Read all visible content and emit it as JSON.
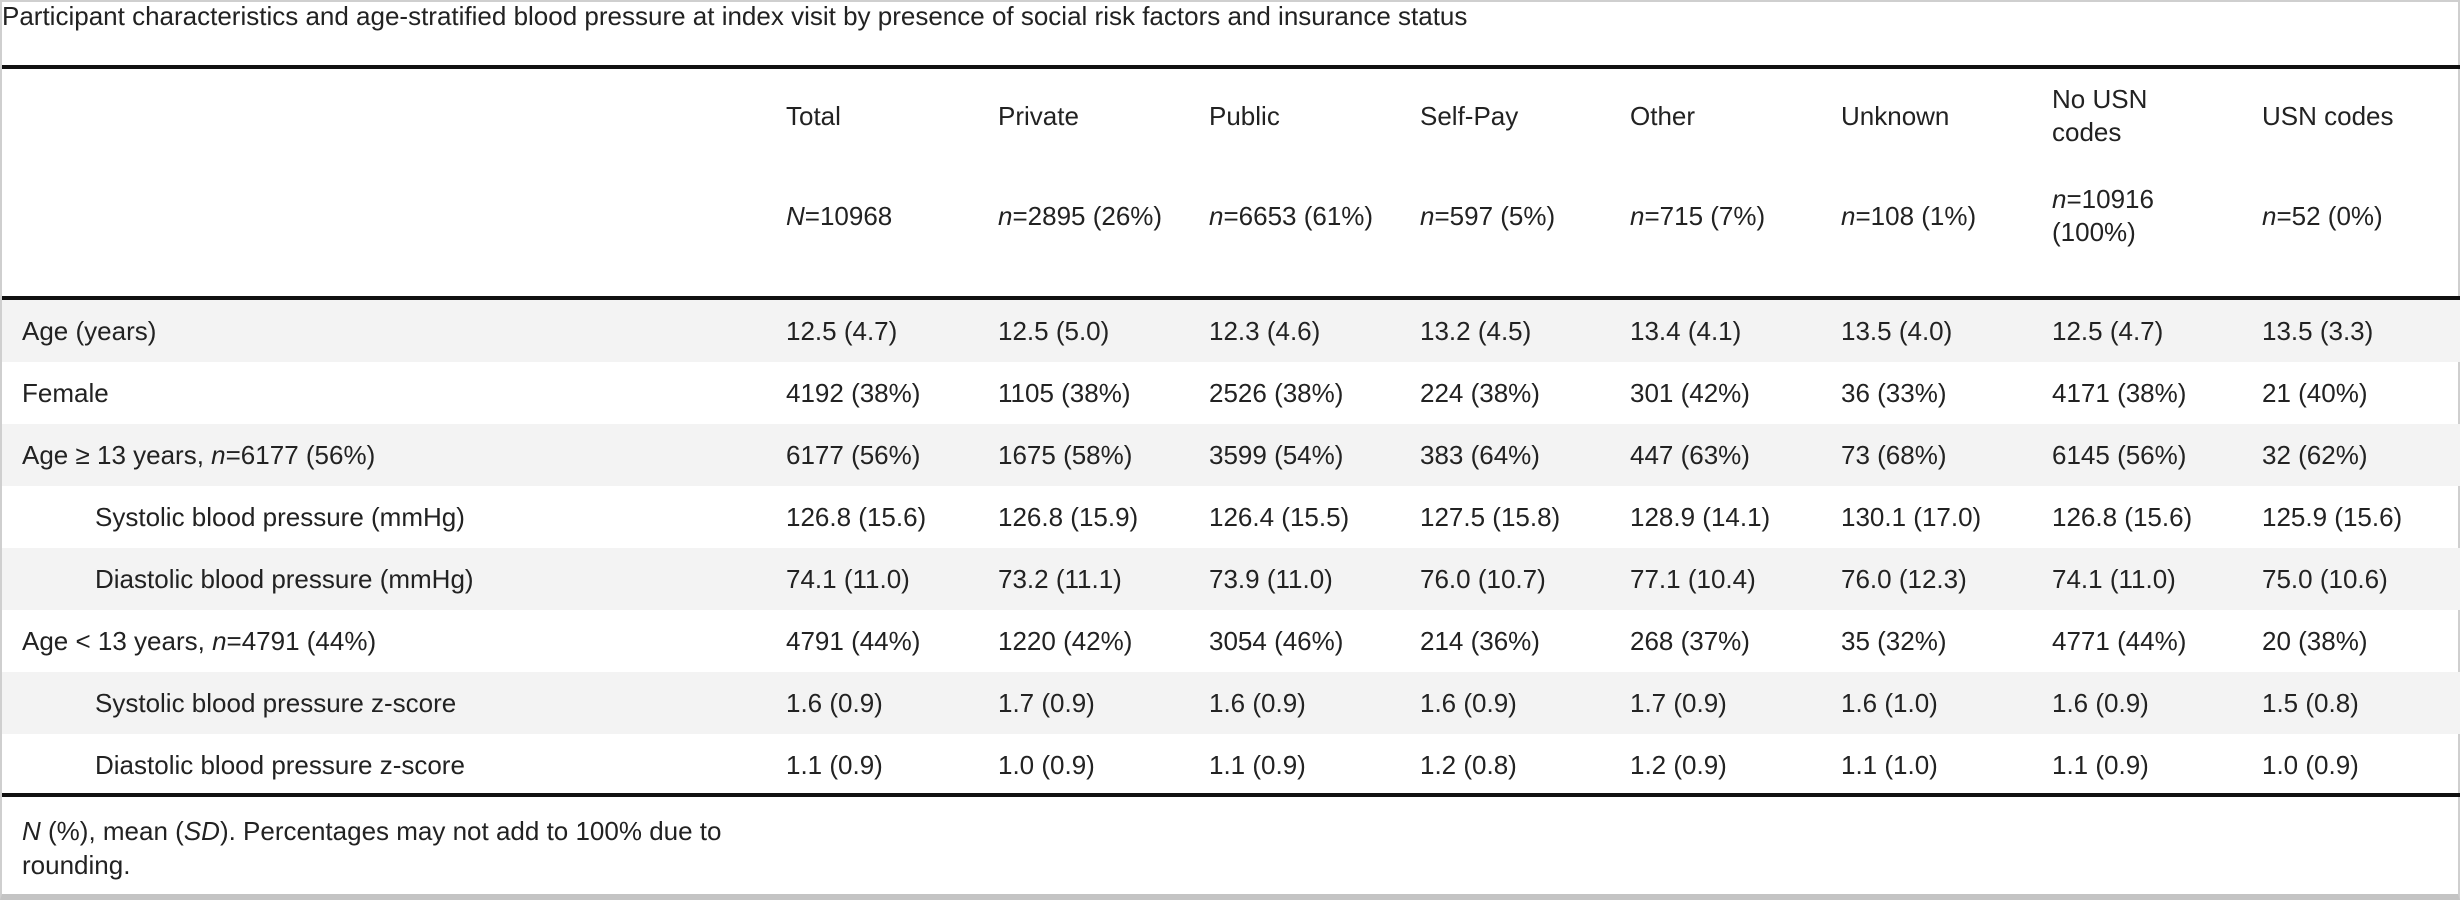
{
  "caption": "Participant characteristics and age-stratified blood pressure at index visit by presence of social risk factors and insurance status",
  "columns": [
    {
      "name": "Total",
      "count_prefix": "N",
      "count_rest": "=10968"
    },
    {
      "name": "Private",
      "count_prefix": "n",
      "count_rest": "=2895 (26%)"
    },
    {
      "name": "Public",
      "count_prefix": "n",
      "count_rest": "=6653 (61%)"
    },
    {
      "name": "Self-Pay",
      "count_prefix": "n",
      "count_rest": "=597 (5%)"
    },
    {
      "name": "Other",
      "count_prefix": "n",
      "count_rest": "=715 (7%)"
    },
    {
      "name": "Unknown",
      "count_prefix": "n",
      "count_rest": "=108 (1%)"
    },
    {
      "name": "No USN codes",
      "count_prefix": "n",
      "count_rest": "=10916 (100%)"
    },
    {
      "name": "USN codes",
      "count_prefix": "n",
      "count_rest": "=52 (0%)"
    }
  ],
  "rows": [
    {
      "label": "Age (years)",
      "values": [
        "12.5 (4.7)",
        "12.5 (5.0)",
        "12.3 (4.6)",
        "13.2 (4.5)",
        "13.4 (4.1)",
        "13.5 (4.0)",
        "12.5 (4.7)",
        "13.5 (3.3)"
      ]
    },
    {
      "label": "Female",
      "values": [
        "4192 (38%)",
        "1105 (38%)",
        "2526 (38%)",
        "224 (38%)",
        "301 (42%)",
        "36 (33%)",
        "4171 (38%)",
        "21 (40%)"
      ]
    },
    {
      "label_pre": "Age ≥ 13 years, ",
      "label_italic": "n",
      "label_post": "=6177 (56%)",
      "values": [
        "6177 (56%)",
        "1675 (58%)",
        "3599 (54%)",
        "383 (64%)",
        "447 (63%)",
        "73 (68%)",
        "6145 (56%)",
        "32 (62%)"
      ]
    },
    {
      "label": "Systolic blood pressure (mmHg)",
      "values": [
        "126.8 (15.6)",
        "126.8 (15.9)",
        "126.4 (15.5)",
        "127.5 (15.8)",
        "128.9 (14.1)",
        "130.1 (17.0)",
        "126.8 (15.6)",
        "125.9 (15.6)"
      ]
    },
    {
      "label": "Diastolic blood pressure (mmHg)",
      "values": [
        "74.1 (11.0)",
        "73.2 (11.1)",
        "73.9 (11.0)",
        "76.0 (10.7)",
        "77.1 (10.4)",
        "76.0 (12.3)",
        "74.1 (11.0)",
        "75.0 (10.6)"
      ]
    },
    {
      "label_pre": "Age < 13 years, ",
      "label_italic": "n",
      "label_post": "=4791 (44%)",
      "values": [
        "4791 (44%)",
        "1220 (42%)",
        "3054 (46%)",
        "214 (36%)",
        "268 (37%)",
        "35 (32%)",
        "4771 (44%)",
        "20 (38%)"
      ]
    },
    {
      "label": "Systolic blood pressure z-score",
      "values": [
        "1.6 (0.9)",
        "1.7 (0.9)",
        "1.6 (0.9)",
        "1.6 (0.9)",
        "1.7 (0.9)",
        "1.6 (1.0)",
        "1.6 (0.9)",
        "1.5 (0.8)"
      ]
    },
    {
      "label": "Diastolic blood pressure z-score",
      "values": [
        "1.1 (0.9)",
        "1.0 (0.9)",
        "1.1 (0.9)",
        "1.2 (0.8)",
        "1.2 (0.9)",
        "1.1 (1.0)",
        "1.1 (0.9)",
        "1.0 (0.9)"
      ]
    }
  ],
  "footnote": {
    "part1": "N",
    "part2": " (%), mean (",
    "part3": "SD",
    "part4": "). Percentages may not add to 100% due to rounding."
  }
}
